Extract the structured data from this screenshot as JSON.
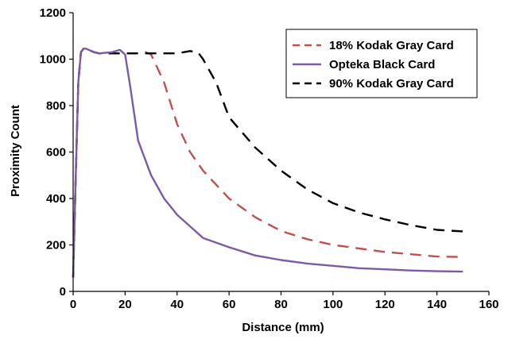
{
  "chart_data": {
    "type": "line",
    "title": "",
    "xlabel": "Distance (mm)",
    "ylabel": "Proximity Count",
    "xlim": [
      0,
      160
    ],
    "ylim": [
      0,
      1200
    ],
    "xticks": [
      0,
      20,
      40,
      60,
      80,
      100,
      120,
      140,
      160
    ],
    "yticks": [
      0,
      200,
      400,
      600,
      800,
      1000,
      1200
    ],
    "grid": false,
    "legend_position": "top-right",
    "series": [
      {
        "name": "18% Kodak Gray Card",
        "color": "#c0504d",
        "dash": "dashed",
        "x": [
          0,
          1,
          2,
          3,
          4,
          5,
          6,
          8,
          10,
          15,
          20,
          25,
          28,
          30,
          35,
          40,
          45,
          50,
          60,
          70,
          80,
          90,
          100,
          110,
          120,
          130,
          140,
          150
        ],
        "y": [
          60,
          500,
          900,
          1030,
          1045,
          1045,
          1040,
          1030,
          1025,
          1025,
          1025,
          1025,
          1030,
          1020,
          900,
          720,
          600,
          520,
          400,
          320,
          260,
          225,
          200,
          185,
          170,
          160,
          150,
          148
        ]
      },
      {
        "name": "Opteka Black Card",
        "color": "#7b5aa6",
        "dash": "solid",
        "x": [
          0,
          1,
          2,
          3,
          4,
          5,
          6,
          8,
          10,
          15,
          18,
          20,
          22,
          25,
          30,
          35,
          40,
          45,
          50,
          60,
          70,
          80,
          90,
          100,
          110,
          120,
          130,
          140,
          150
        ],
        "y": [
          60,
          500,
          900,
          1030,
          1045,
          1045,
          1040,
          1030,
          1025,
          1030,
          1040,
          1020,
          880,
          650,
          500,
          400,
          330,
          280,
          230,
          190,
          155,
          135,
          120,
          110,
          100,
          95,
          90,
          87,
          85
        ]
      },
      {
        "name": "90% Kodak Gray Card",
        "color": "#000000",
        "dash": "dashed",
        "x": [
          0,
          1,
          2,
          3,
          4,
          5,
          6,
          8,
          10,
          20,
          30,
          40,
          45,
          48,
          50,
          55,
          60,
          70,
          80,
          90,
          100,
          110,
          120,
          130,
          140,
          150
        ],
        "y": [
          60,
          500,
          900,
          1030,
          1045,
          1045,
          1040,
          1030,
          1025,
          1025,
          1025,
          1025,
          1035,
          1030,
          1000,
          900,
          750,
          620,
          520,
          440,
          380,
          340,
          310,
          285,
          265,
          258
        ]
      }
    ]
  }
}
